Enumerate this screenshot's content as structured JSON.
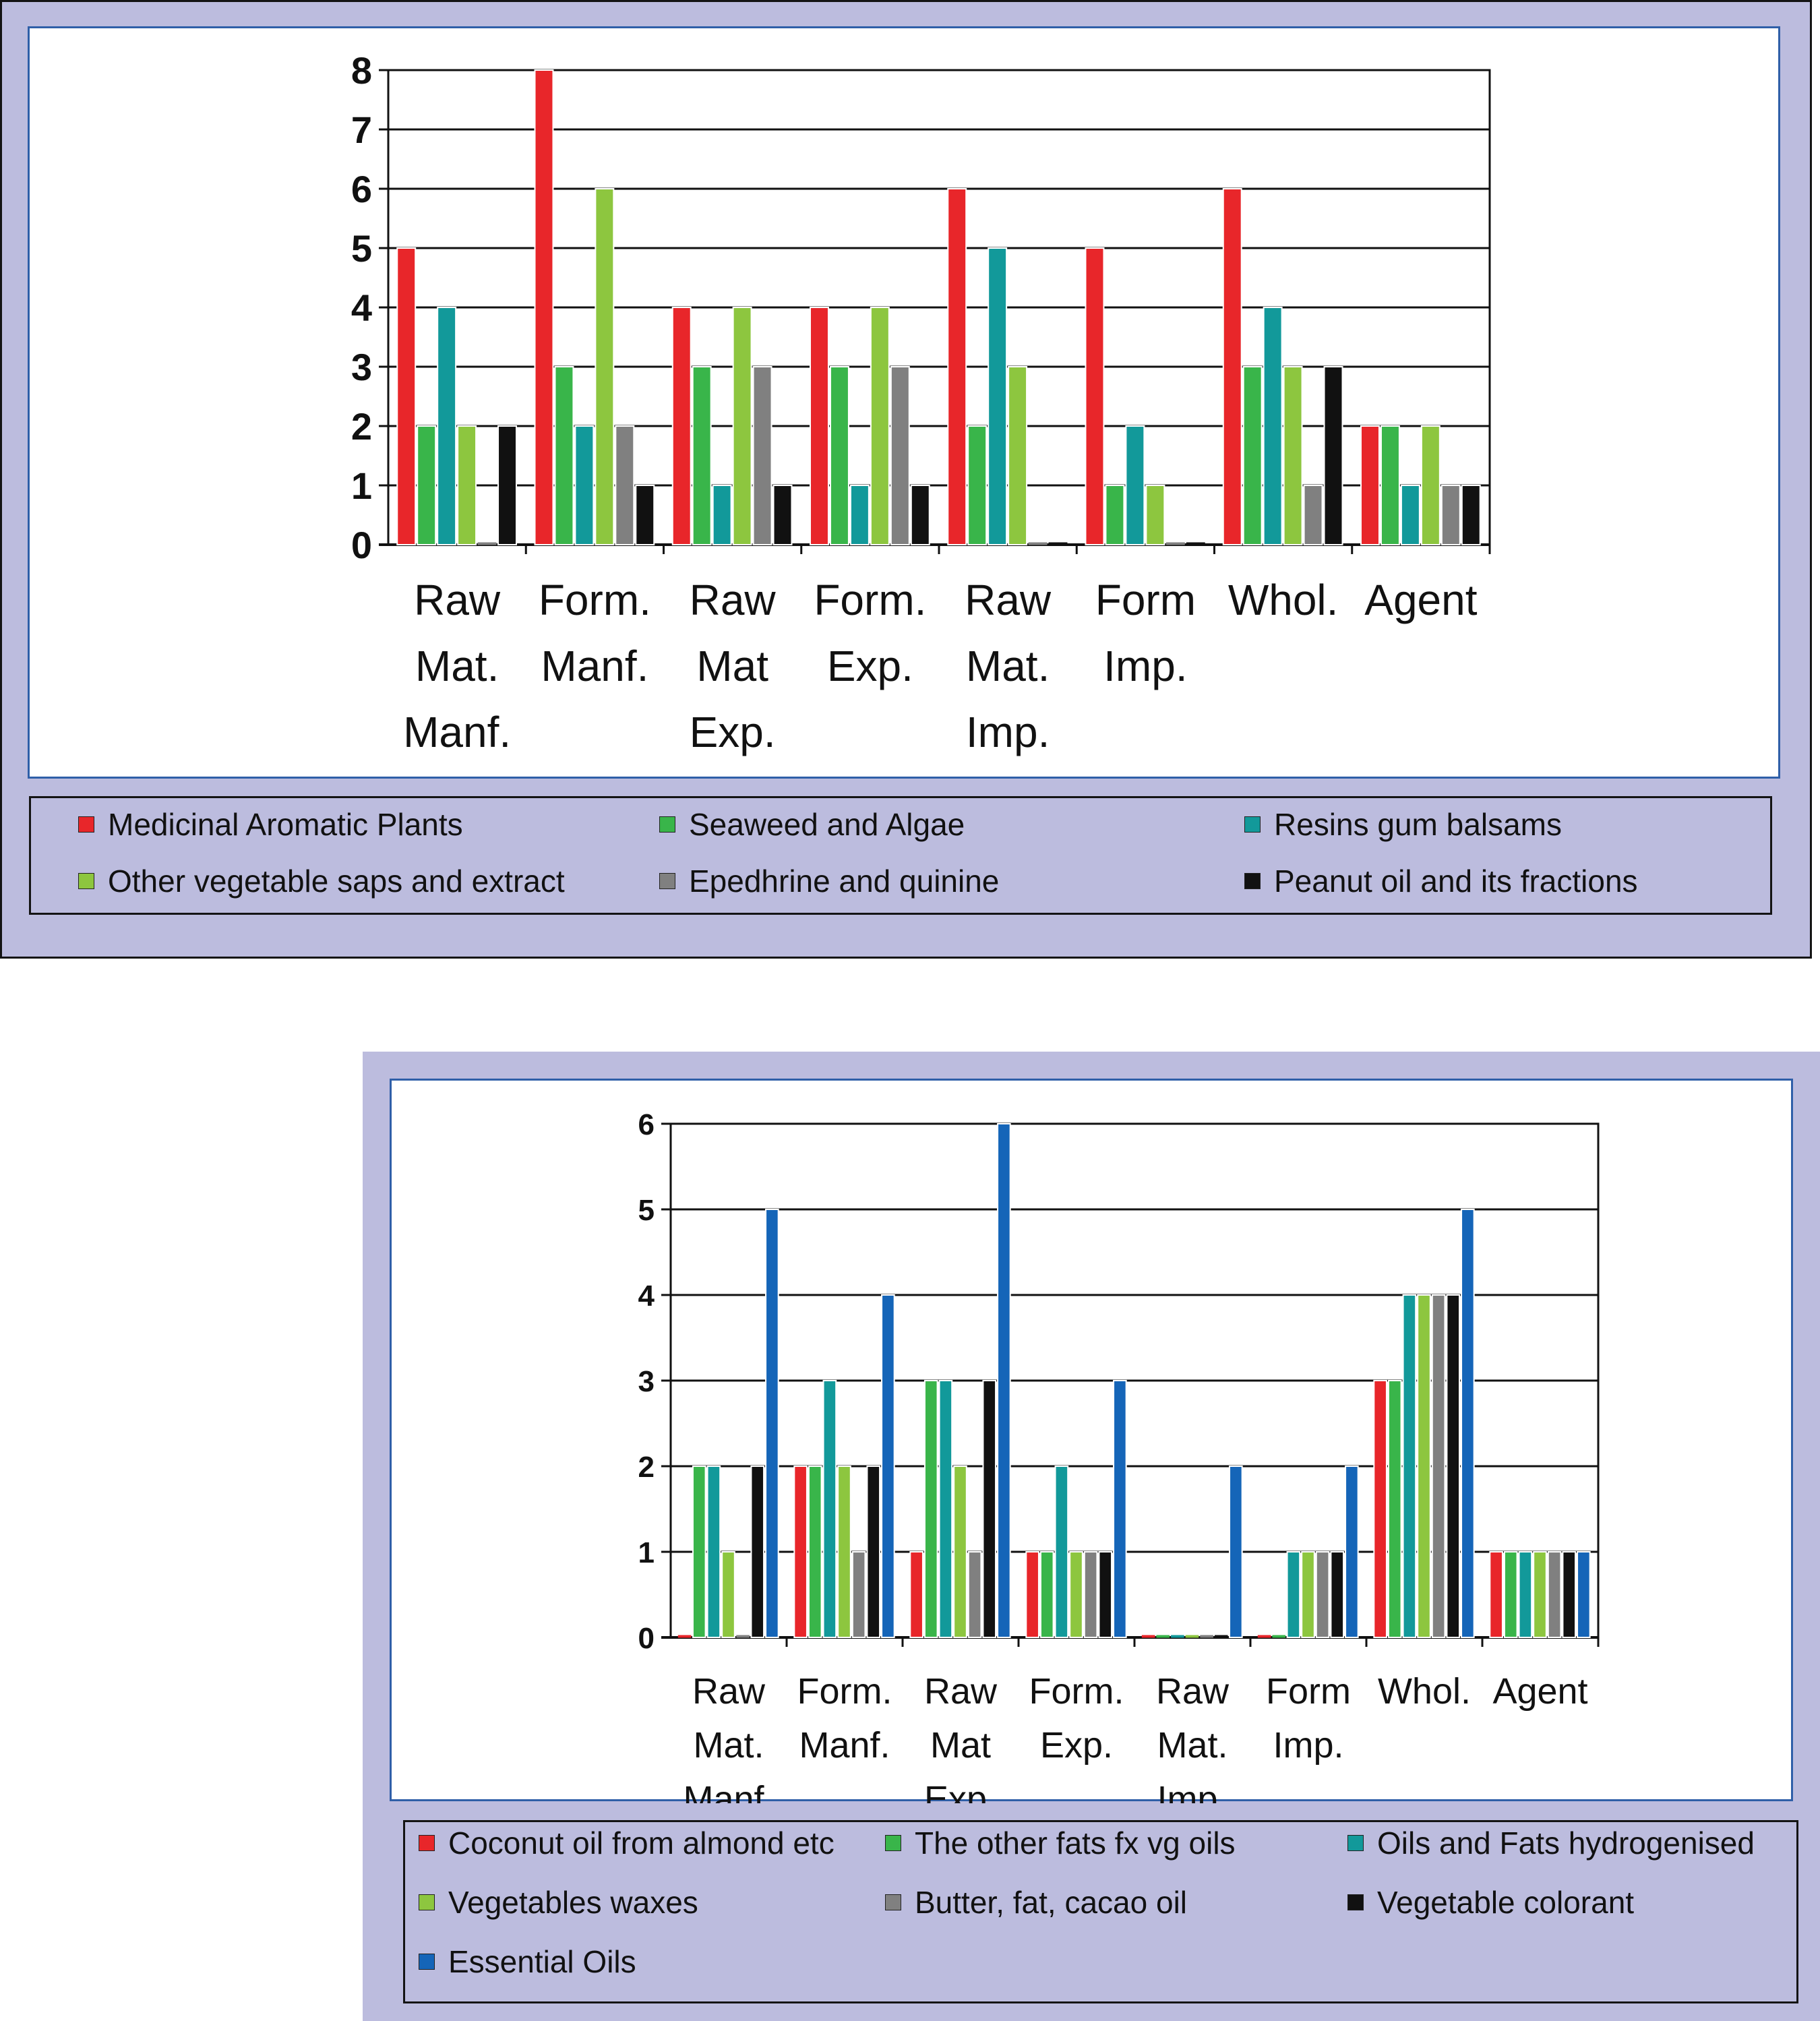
{
  "chart_data": [
    {
      "type": "bar",
      "categories": [
        [
          "Raw",
          "Mat.",
          "Manf."
        ],
        [
          "Form.",
          "Manf."
        ],
        [
          "Raw",
          "Mat",
          "Exp."
        ],
        [
          "Form.",
          "Exp."
        ],
        [
          "Raw",
          "Mat.",
          "Imp."
        ],
        [
          "Form",
          "Imp."
        ],
        [
          "Whol."
        ],
        [
          "Agent"
        ]
      ],
      "ylim": [
        0,
        8
      ],
      "yticks": [
        "0",
        "1",
        "2",
        "3",
        "4",
        "5",
        "6",
        "7",
        "8"
      ],
      "grid": true,
      "legend_position": "bottom",
      "series": [
        {
          "name": "Medicinal Aromatic Plants",
          "color": "#e8262a",
          "values": [
            5,
            8,
            4,
            4,
            6,
            5,
            6,
            2
          ]
        },
        {
          "name": "Seaweed and Algae",
          "color": "#39b54a",
          "values": [
            2,
            3,
            3,
            3,
            2,
            1,
            3,
            2
          ]
        },
        {
          "name": "Resins gum balsams",
          "color": "#12999a",
          "values": [
            4,
            2,
            1,
            1,
            5,
            2,
            4,
            1
          ]
        },
        {
          "name": "Other vegetable saps and extract",
          "color": "#8dc63f",
          "values": [
            2,
            6,
            4,
            4,
            3,
            1,
            3,
            2
          ]
        },
        {
          "name": "Epedhrine and quinine",
          "color": "#808080",
          "values": [
            0,
            2,
            3,
            3,
            0,
            0,
            1,
            1
          ]
        },
        {
          "name": "Peanut oil and its fractions",
          "color": "#111111",
          "values": [
            2,
            1,
            1,
            1,
            0,
            0,
            3,
            1
          ]
        }
      ]
    },
    {
      "type": "bar",
      "categories": [
        [
          "Raw",
          "Mat.",
          "Manf."
        ],
        [
          "Form.",
          "Manf."
        ],
        [
          "Raw",
          "Mat",
          "Exp."
        ],
        [
          "Form.",
          "Exp."
        ],
        [
          "Raw",
          "Mat.",
          "Imp."
        ],
        [
          "Form",
          "Imp."
        ],
        [
          "Whol."
        ],
        [
          "Agent"
        ]
      ],
      "ylim": [
        0,
        6
      ],
      "yticks": [
        "0",
        "1",
        "2",
        "3",
        "4",
        "5",
        "6"
      ],
      "grid": true,
      "legend_position": "bottom",
      "series": [
        {
          "name": "Coconut oil from almond etc",
          "color": "#e8262a",
          "values": [
            0,
            2,
            1,
            1,
            0,
            0,
            3,
            1
          ]
        },
        {
          "name": "The other fats fx vg oils",
          "color": "#39b54a",
          "values": [
            2,
            2,
            3,
            1,
            0,
            0,
            3,
            1
          ]
        },
        {
          "name": "Oils and Fats hydrogenised",
          "color": "#12999a",
          "values": [
            2,
            3,
            3,
            2,
            0,
            1,
            4,
            1
          ]
        },
        {
          "name": "Vegetables waxes",
          "color": "#8dc63f",
          "values": [
            1,
            2,
            2,
            1,
            0,
            1,
            4,
            1
          ]
        },
        {
          "name": "Butter, fat, cacao oil",
          "color": "#808080",
          "values": [
            0,
            1,
            1,
            1,
            0,
            1,
            4,
            1
          ]
        },
        {
          "name": "Vegetable colorant",
          "color": "#111111",
          "values": [
            2,
            2,
            3,
            1,
            0,
            1,
            4,
            1
          ]
        },
        {
          "name": "Essential Oils",
          "color": "#1565b8",
          "values": [
            5,
            4,
            6,
            3,
            2,
            2,
            5,
            1
          ]
        }
      ]
    }
  ]
}
